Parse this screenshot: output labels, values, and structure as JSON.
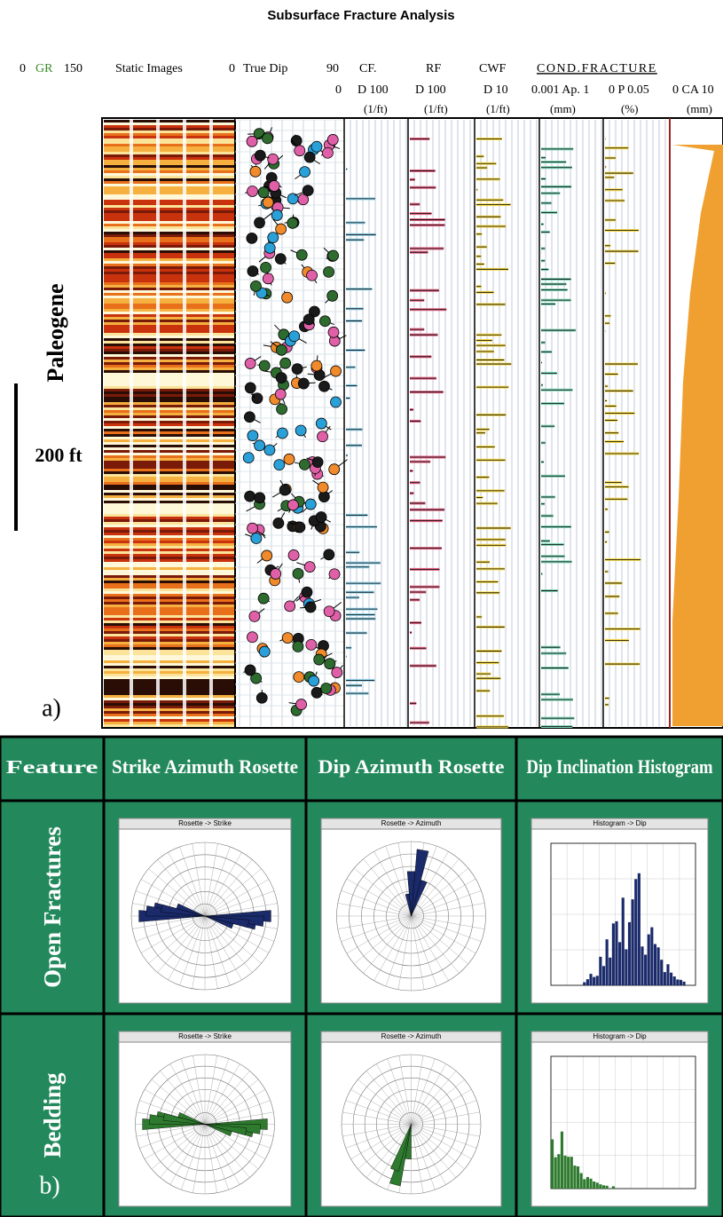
{
  "title": "Subsurface Fracture Analysis",
  "track_header": {
    "row1": [
      "0",
      "GR",
      "150",
      "Static Images",
      "0",
      "True Dip",
      "90",
      "CF.",
      "RF",
      "CWF",
      "COND.FRACTURE"
    ],
    "row2": [
      "0",
      "D 100",
      "D 100",
      "D 10",
      "0.001 Ap. 1",
      "0 P 0.05",
      "0 CA 10"
    ],
    "units": [
      "(1/ft)",
      "(1/ft)",
      "(1/ft)",
      "(mm)",
      "(%)",
      "(mm)"
    ]
  },
  "panel_a": {
    "label": "a)",
    "era": "Paleogene",
    "scale": "200 ft"
  },
  "panel_b": {
    "label": "b)",
    "columns": [
      "Feature",
      "Strike Azimuth Rosette",
      "Dip Azimuth Rosette",
      "Dip Inclination Histogram"
    ],
    "rows": [
      {
        "feature": "Open Fractures",
        "plots": [
          "Rosette -> Strike",
          "Rosette -> Azimuth",
          "Histogram -> Dip"
        ]
      },
      {
        "feature": "Bedding",
        "plots": [
          "Rosette -> Strike",
          "Rosette -> Azimuth",
          "Histogram -> Dip"
        ]
      }
    ]
  }
}
